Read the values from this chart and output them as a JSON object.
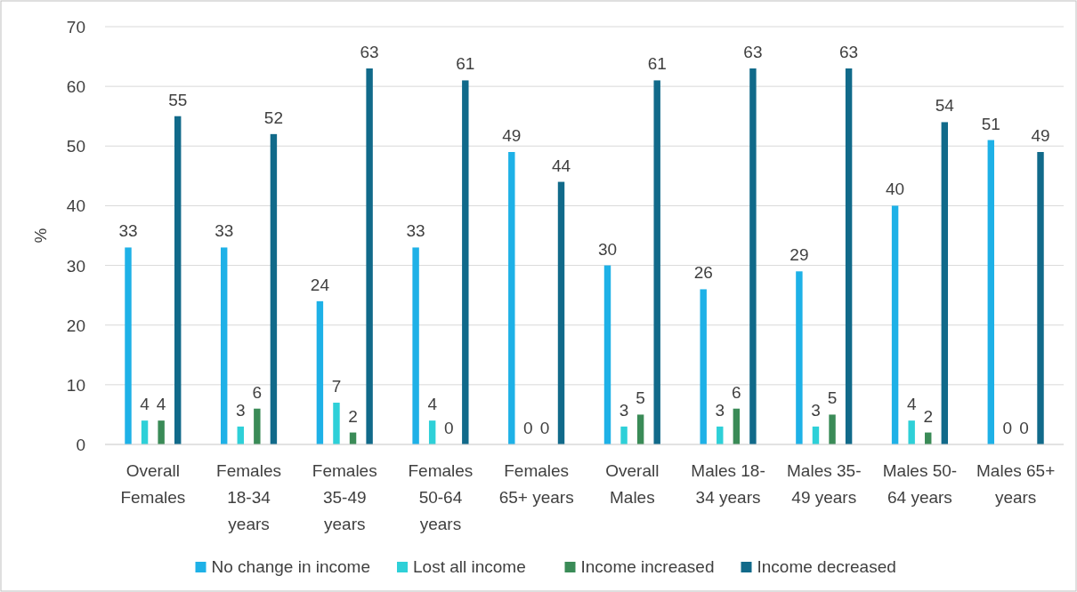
{
  "chart_data": {
    "type": "bar",
    "ylabel": "%",
    "categories": [
      "Overall Females",
      "Females 18-34 years",
      "Females 35-49 years",
      "Females 50-64 years",
      "Females 65+ years",
      "Overall Males",
      "Males 18-34 years",
      "Males 35-49 years",
      "Males 50-64 years",
      "Males 65+ years"
    ],
    "series": [
      {
        "name": "No change in income",
        "color": "#1eb1e7",
        "values": [
          33,
          33,
          24,
          33,
          49,
          30,
          26,
          29,
          40,
          51
        ]
      },
      {
        "name": "Lost all income",
        "color": "#2ed0d8",
        "values": [
          4,
          3,
          7,
          4,
          0,
          3,
          3,
          3,
          4,
          0
        ]
      },
      {
        "name": "Income increased",
        "color": "#3a8b57",
        "values": [
          4,
          6,
          2,
          0,
          0,
          5,
          6,
          5,
          2,
          0
        ]
      },
      {
        "name": "Income decreased",
        "color": "#116a8a",
        "values": [
          55,
          52,
          63,
          61,
          44,
          61,
          63,
          63,
          54,
          49
        ]
      }
    ],
    "ylim": [
      0,
      70
    ],
    "yticks": [
      0,
      10,
      20,
      30,
      40,
      50,
      60,
      70
    ],
    "grid": "y",
    "legend": "bottom",
    "data_labels": true
  }
}
